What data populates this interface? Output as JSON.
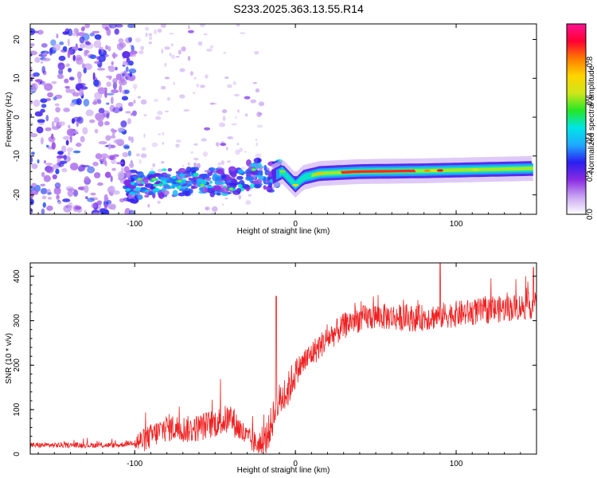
{
  "title": "S233.2025.363.13.55.R14",
  "chart_data": [
    {
      "type": "heatmap",
      "xlabel": "Height of straight line (km)",
      "ylabel": "Frequency (Hz)",
      "xlim": [
        -165,
        150
      ],
      "ylim": [
        -25,
        24
      ],
      "xticks": [
        -100,
        0,
        100
      ],
      "yticks": [
        -20,
        -10,
        0,
        10,
        20
      ],
      "colorbar": {
        "label": "Normalized spectral amplitude",
        "range": [
          0,
          1
        ],
        "ticks": [
          "0.0",
          "0.2",
          "0.4",
          "0.6",
          "0.8"
        ],
        "tick_values": [
          0,
          0.2,
          0.4,
          0.6,
          0.8
        ],
        "colors": [
          "#ffffff",
          "#c9a6f2",
          "#8a2be2",
          "#2a1ef0",
          "#1fa9ff",
          "#00e6e6",
          "#25e625",
          "#cfe61a",
          "#ffd400",
          "#ff7a00",
          "#ff0033",
          "#ff1493"
        ]
      },
      "ridge": [
        {
          "x": -105,
          "f": -18.0
        },
        {
          "x": -85,
          "f": -17.0
        },
        {
          "x": -60,
          "f": -16.5
        },
        {
          "x": -40,
          "f": -17.0
        },
        {
          "x": -25,
          "f": -14.0
        },
        {
          "x": -15,
          "f": -15.5
        },
        {
          "x": -8,
          "f": -14.0
        },
        {
          "x": 0,
          "f": -17.5
        },
        {
          "x": 5,
          "f": -15.5
        },
        {
          "x": 15,
          "f": -14.5
        },
        {
          "x": 40,
          "f": -14.0
        },
        {
          "x": 80,
          "f": -13.8
        },
        {
          "x": 148,
          "f": -13.2
        }
      ]
    },
    {
      "type": "line",
      "xlabel": "Height of straight line (km)",
      "ylabel": "SNR (10 * v/v)",
      "xlim": [
        -165,
        150
      ],
      "ylim": [
        0,
        430
      ],
      "xticks": [
        -100,
        0,
        100
      ],
      "yticks": [
        0,
        100,
        200,
        300,
        400
      ],
      "color": "#ee2222",
      "series_envelope": [
        {
          "x": -165,
          "y": 20
        },
        {
          "x": -110,
          "y": 20
        },
        {
          "x": -95,
          "y": 30
        },
        {
          "x": -80,
          "y": 60
        },
        {
          "x": -65,
          "y": 55
        },
        {
          "x": -50,
          "y": 70
        },
        {
          "x": -40,
          "y": 80
        },
        {
          "x": -30,
          "y": 35
        },
        {
          "x": -20,
          "y": 15
        },
        {
          "x": -13,
          "y": 90
        },
        {
          "x": -10,
          "y": 120
        },
        {
          "x": -5,
          "y": 140
        },
        {
          "x": 0,
          "y": 185
        },
        {
          "x": 10,
          "y": 225
        },
        {
          "x": 20,
          "y": 260
        },
        {
          "x": 35,
          "y": 300
        },
        {
          "x": 50,
          "y": 310
        },
        {
          "x": 75,
          "y": 305
        },
        {
          "x": 100,
          "y": 315
        },
        {
          "x": 125,
          "y": 325
        },
        {
          "x": 150,
          "y": 335
        }
      ],
      "spikes": [
        {
          "x": -12,
          "y": 355
        },
        {
          "x": 90,
          "y": 430
        },
        {
          "x": 148,
          "y": 420
        }
      ]
    }
  ]
}
